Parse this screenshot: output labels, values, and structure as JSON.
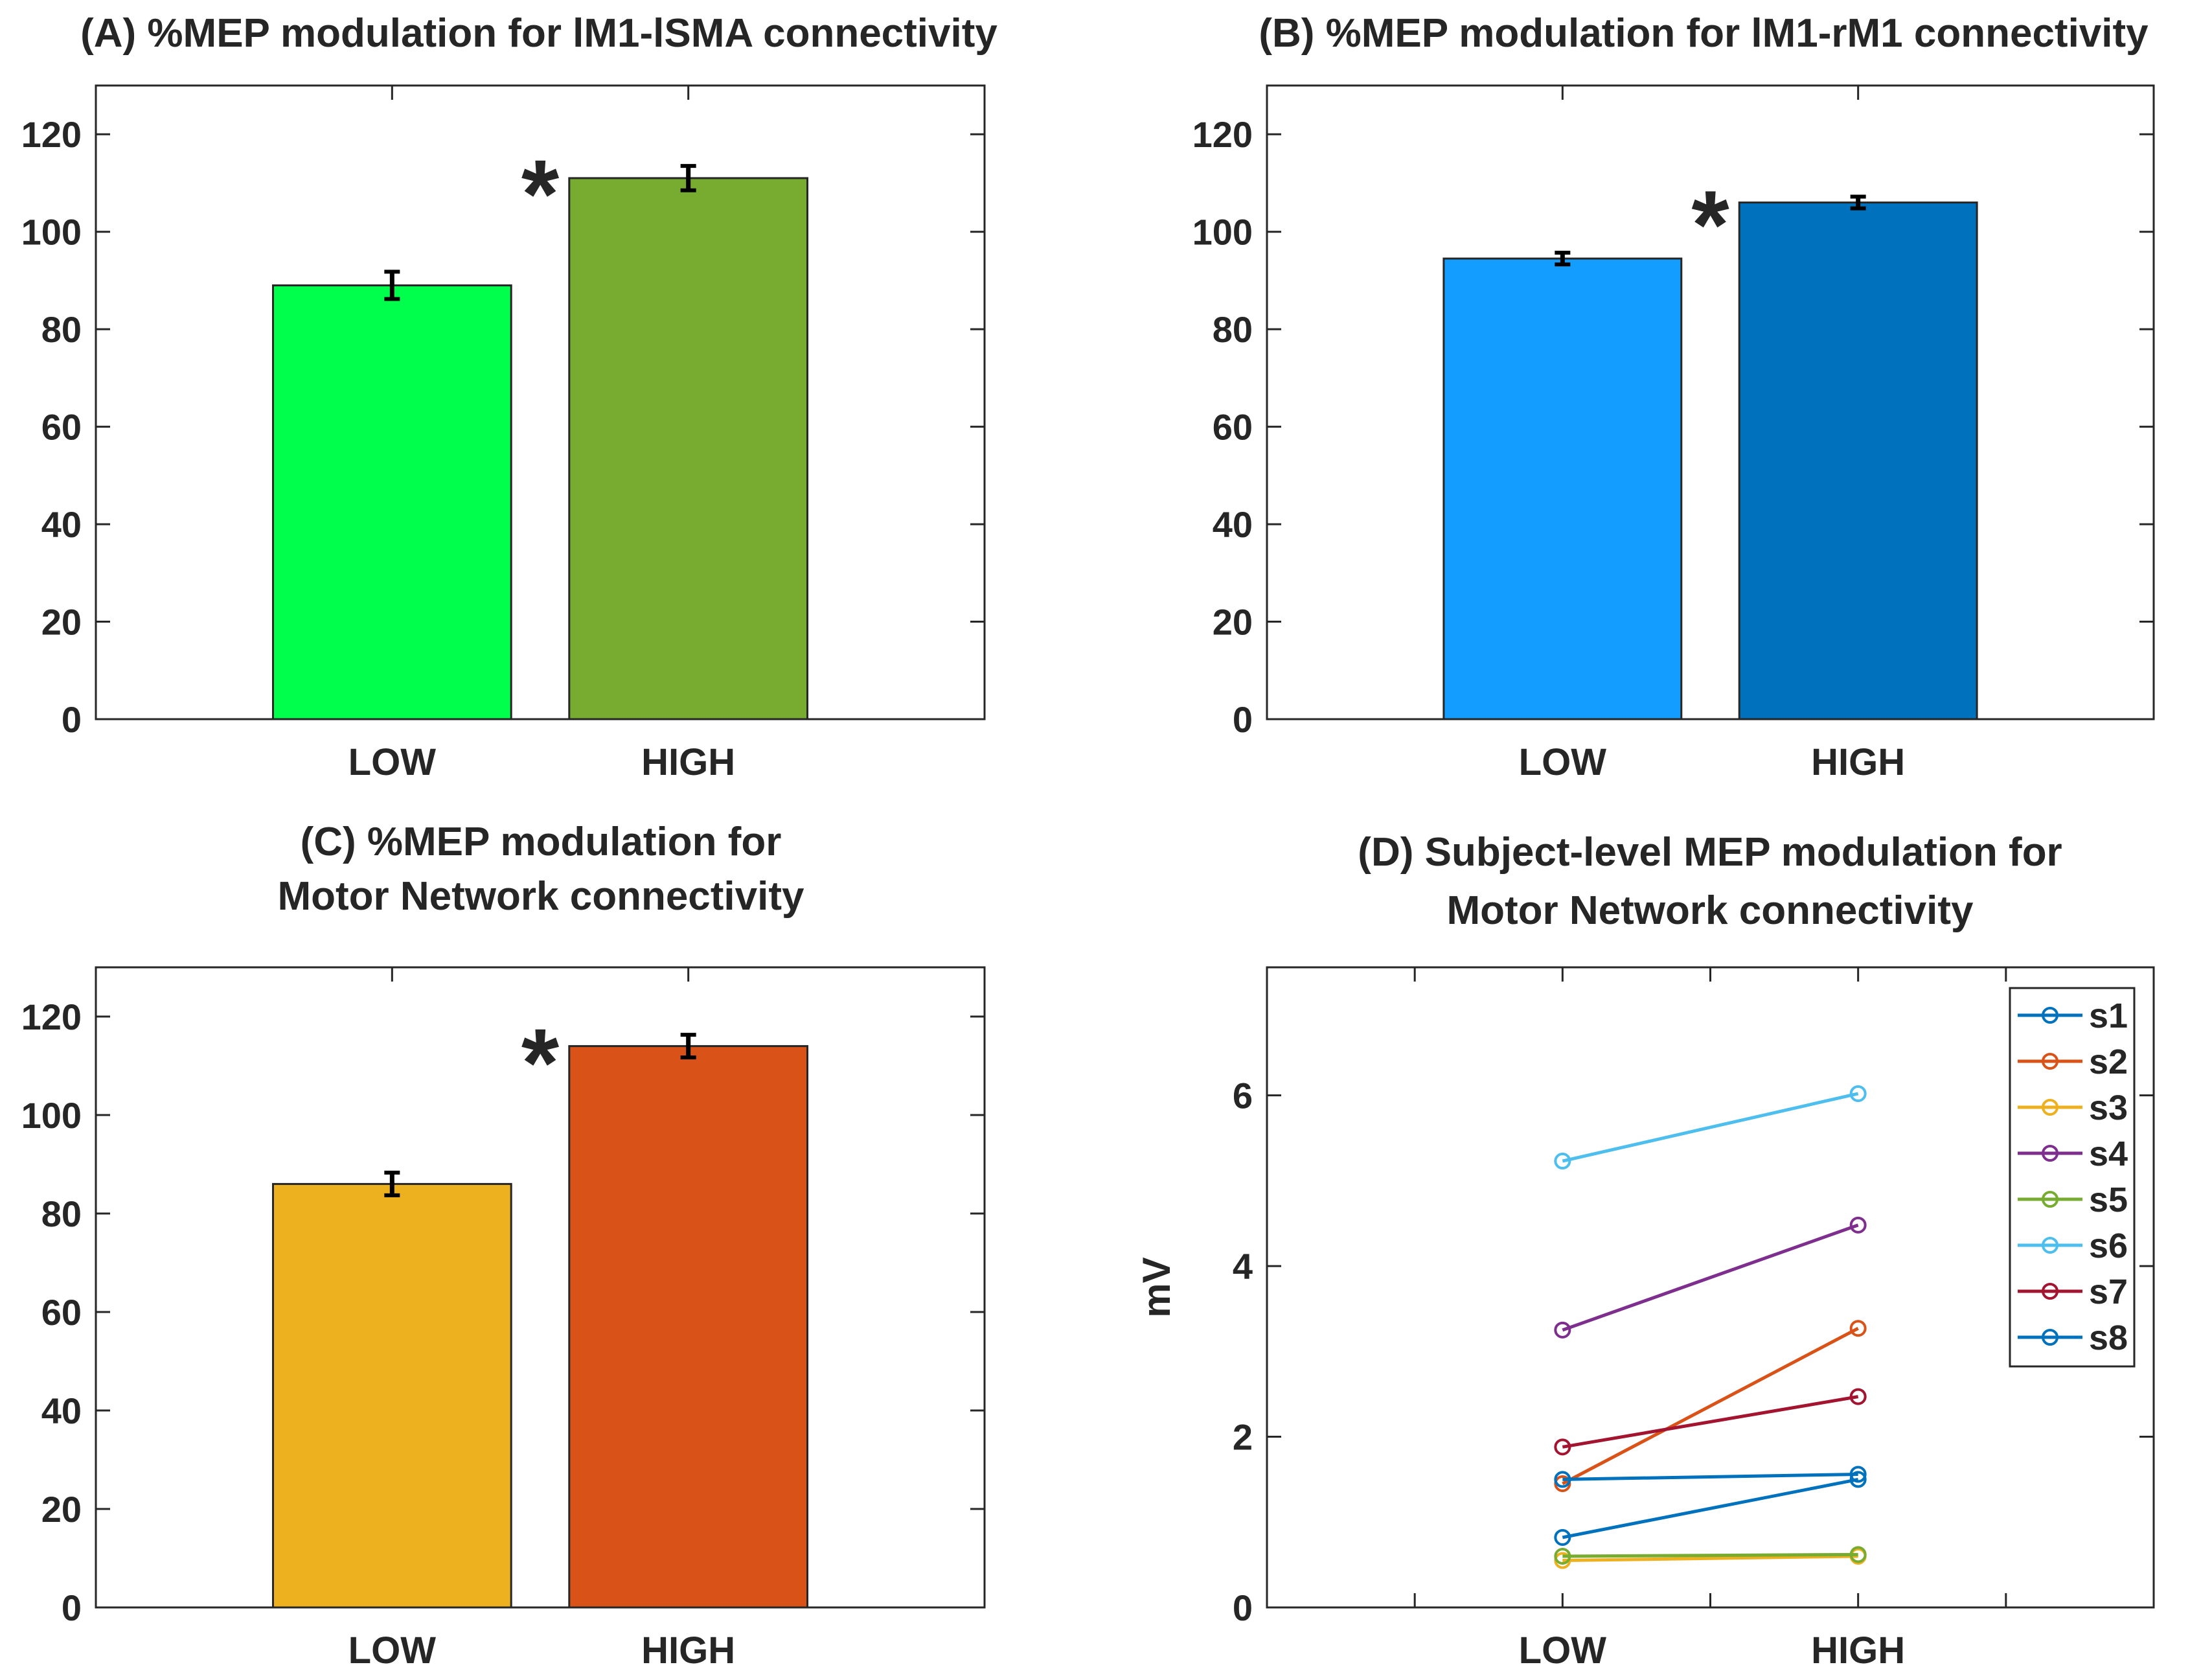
{
  "chart_data": [
    {
      "id": "A",
      "type": "bar",
      "title": "(A) %MEP modulation for lM1-lSMA connectivity",
      "title_lines": [
        "(A) %MEP modulation for lM1-lSMA connectivity"
      ],
      "categories": [
        "LOW",
        "HIGH"
      ],
      "values": [
        89,
        111
      ],
      "errors": [
        2.8,
        2.5
      ],
      "colors": [
        "#00FF4C",
        "#77AC30"
      ],
      "ylim": [
        0,
        130
      ],
      "yticks": [
        0,
        20,
        40,
        60,
        80,
        100,
        120
      ],
      "xlabel": "",
      "ylabel": "",
      "annotation": "*"
    },
    {
      "id": "B",
      "type": "bar",
      "title": "(B) %MEP modulation for lM1-rM1 connectivity",
      "title_lines": [
        "(B) %MEP modulation for lM1-rM1 connectivity"
      ],
      "categories": [
        "LOW",
        "HIGH"
      ],
      "values": [
        94.5,
        106
      ],
      "errors": [
        1.2,
        1.2
      ],
      "colors": [
        "#129DFF",
        "#0072BD"
      ],
      "ylim": [
        0,
        130
      ],
      "yticks": [
        0,
        20,
        40,
        60,
        80,
        100,
        120
      ],
      "xlabel": "",
      "ylabel": "",
      "annotation": "*"
    },
    {
      "id": "C",
      "type": "bar",
      "title": "(C) %MEP modulation for Motor Network connectivity",
      "title_lines": [
        "(C)  %MEP modulation for",
        "Motor Network connectivity"
      ],
      "categories": [
        "LOW",
        "HIGH"
      ],
      "values": [
        86,
        114
      ],
      "errors": [
        2.3,
        2.3
      ],
      "colors": [
        "#EDB120",
        "#D95319"
      ],
      "ylim": [
        0,
        130
      ],
      "yticks": [
        0,
        20,
        40,
        60,
        80,
        100,
        120
      ],
      "xlabel": "",
      "ylabel": "",
      "annotation": "*"
    },
    {
      "id": "D",
      "type": "line",
      "title": "(D) Subject-level MEP modulation for Motor Network connectivity",
      "title_lines": [
        "(D)  Subject-level MEP modulation for",
        "Motor Network  connectivity"
      ],
      "categories": [
        "LOW",
        "HIGH"
      ],
      "ylabel": "mV",
      "xlabel": "",
      "ylim": [
        0,
        7.5
      ],
      "yticks": [
        0,
        2,
        4,
        6
      ],
      "legend_position": "top-right",
      "series": [
        {
          "name": "s1",
          "color": "#0072BD",
          "values": [
            0.82,
            1.5
          ]
        },
        {
          "name": "s2",
          "color": "#D95319",
          "values": [
            1.45,
            3.27
          ]
        },
        {
          "name": "s3",
          "color": "#EDB120",
          "values": [
            0.55,
            0.6
          ]
        },
        {
          "name": "s4",
          "color": "#7E2F8E",
          "values": [
            3.25,
            4.48
          ]
        },
        {
          "name": "s5",
          "color": "#77AC30",
          "values": [
            0.6,
            0.62
          ]
        },
        {
          "name": "s6",
          "color": "#4DBEEE",
          "values": [
            5.23,
            6.02
          ]
        },
        {
          "name": "s7",
          "color": "#A2142F",
          "values": [
            1.88,
            2.47
          ]
        },
        {
          "name": "s8",
          "color": "#0072BD",
          "values": [
            1.5,
            1.56
          ]
        }
      ]
    }
  ]
}
